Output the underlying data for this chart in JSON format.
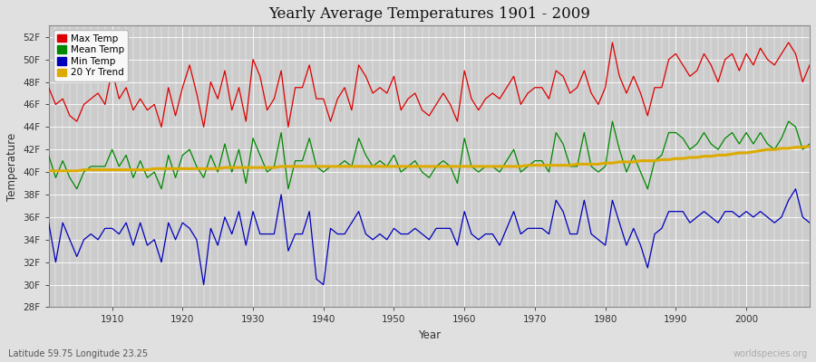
{
  "title": "Yearly Average Temperatures 1901 - 2009",
  "xlabel": "Year",
  "ylabel": "Temperature",
  "lat_lon_label": "Latitude 59.75 Longitude 23.25",
  "watermark": "worldspecies.org",
  "years": [
    1901,
    1902,
    1903,
    1904,
    1905,
    1906,
    1907,
    1908,
    1909,
    1910,
    1911,
    1912,
    1913,
    1914,
    1915,
    1916,
    1917,
    1918,
    1919,
    1920,
    1921,
    1922,
    1923,
    1924,
    1925,
    1926,
    1927,
    1928,
    1929,
    1930,
    1931,
    1932,
    1933,
    1934,
    1935,
    1936,
    1937,
    1938,
    1939,
    1940,
    1941,
    1942,
    1943,
    1944,
    1945,
    1946,
    1947,
    1948,
    1949,
    1950,
    1951,
    1952,
    1953,
    1954,
    1955,
    1956,
    1957,
    1958,
    1959,
    1960,
    1961,
    1962,
    1963,
    1964,
    1965,
    1966,
    1967,
    1968,
    1969,
    1970,
    1971,
    1972,
    1973,
    1974,
    1975,
    1976,
    1977,
    1978,
    1979,
    1980,
    1981,
    1982,
    1983,
    1984,
    1985,
    1986,
    1987,
    1988,
    1989,
    1990,
    1991,
    1992,
    1993,
    1994,
    1995,
    1996,
    1997,
    1998,
    1999,
    2000,
    2001,
    2002,
    2003,
    2004,
    2005,
    2006,
    2007,
    2008,
    2009
  ],
  "max_temp": [
    47.5,
    46.0,
    46.5,
    45.0,
    44.5,
    46.0,
    46.5,
    47.0,
    46.0,
    49.0,
    46.5,
    47.5,
    45.5,
    46.5,
    45.5,
    46.0,
    44.0,
    47.5,
    45.0,
    47.5,
    49.5,
    47.0,
    44.0,
    48.0,
    46.5,
    49.0,
    45.5,
    47.5,
    44.5,
    50.0,
    48.5,
    45.5,
    46.5,
    49.0,
    44.0,
    47.5,
    47.5,
    49.5,
    46.5,
    46.5,
    44.5,
    46.5,
    47.5,
    45.5,
    49.5,
    48.5,
    47.0,
    47.5,
    47.0,
    48.5,
    45.5,
    46.5,
    47.0,
    45.5,
    45.0,
    46.0,
    47.0,
    46.0,
    44.5,
    49.0,
    46.5,
    45.5,
    46.5,
    47.0,
    46.5,
    47.5,
    48.5,
    46.0,
    47.0,
    47.5,
    47.5,
    46.5,
    49.0,
    48.5,
    47.0,
    47.5,
    49.0,
    47.0,
    46.0,
    47.5,
    51.5,
    48.5,
    47.0,
    48.5,
    47.0,
    45.0,
    47.5,
    47.5,
    50.0,
    50.5,
    49.5,
    48.5,
    49.0,
    50.5,
    49.5,
    48.0,
    50.0,
    50.5,
    49.0,
    50.5,
    49.5,
    51.0,
    50.0,
    49.5,
    50.5,
    51.5,
    50.5,
    48.0,
    49.5
  ],
  "mean_temp": [
    41.5,
    39.5,
    41.0,
    39.5,
    38.5,
    40.0,
    40.5,
    40.5,
    40.5,
    42.0,
    40.5,
    41.5,
    39.5,
    41.0,
    39.5,
    40.0,
    38.5,
    41.5,
    39.5,
    41.5,
    42.0,
    40.5,
    39.5,
    41.5,
    40.0,
    42.5,
    40.0,
    42.0,
    39.0,
    43.0,
    41.5,
    40.0,
    40.5,
    43.5,
    38.5,
    41.0,
    41.0,
    43.0,
    40.5,
    40.0,
    40.5,
    40.5,
    41.0,
    40.5,
    43.0,
    41.5,
    40.5,
    41.0,
    40.5,
    41.5,
    40.0,
    40.5,
    41.0,
    40.0,
    39.5,
    40.5,
    41.0,
    40.5,
    39.0,
    43.0,
    40.5,
    40.0,
    40.5,
    40.5,
    40.0,
    41.0,
    42.0,
    40.0,
    40.5,
    41.0,
    41.0,
    40.0,
    43.5,
    42.5,
    40.5,
    40.5,
    43.5,
    40.5,
    40.0,
    40.5,
    44.5,
    42.0,
    40.0,
    41.5,
    40.0,
    38.5,
    41.0,
    41.5,
    43.5,
    43.5,
    43.0,
    42.0,
    42.5,
    43.5,
    42.5,
    42.0,
    43.0,
    43.5,
    42.5,
    43.5,
    42.5,
    43.5,
    42.5,
    42.0,
    43.0,
    44.5,
    44.0,
    42.0,
    42.5
  ],
  "min_temp": [
    35.5,
    32.0,
    35.5,
    34.0,
    32.5,
    34.0,
    34.5,
    34.0,
    35.0,
    35.0,
    34.5,
    35.5,
    33.5,
    35.5,
    33.5,
    34.0,
    32.0,
    35.5,
    34.0,
    35.5,
    35.0,
    34.0,
    30.0,
    35.0,
    33.5,
    36.0,
    34.5,
    36.5,
    33.5,
    36.5,
    34.5,
    34.5,
    34.5,
    38.0,
    33.0,
    34.5,
    34.5,
    36.5,
    30.5,
    30.0,
    35.0,
    34.5,
    34.5,
    35.5,
    36.5,
    34.5,
    34.0,
    34.5,
    34.0,
    35.0,
    34.5,
    34.5,
    35.0,
    34.5,
    34.0,
    35.0,
    35.0,
    35.0,
    33.5,
    36.5,
    34.5,
    34.0,
    34.5,
    34.5,
    33.5,
    35.0,
    36.5,
    34.5,
    35.0,
    35.0,
    35.0,
    34.5,
    37.5,
    36.5,
    34.5,
    34.5,
    37.5,
    34.5,
    34.0,
    33.5,
    37.5,
    35.5,
    33.5,
    35.0,
    33.5,
    31.5,
    34.5,
    35.0,
    36.5,
    36.5,
    36.5,
    35.5,
    36.0,
    36.5,
    36.0,
    35.5,
    36.5,
    36.5,
    36.0,
    36.5,
    36.0,
    36.5,
    36.0,
    35.5,
    36.0,
    37.5,
    38.5,
    36.0,
    35.5
  ],
  "trend": [
    40.1,
    40.1,
    40.1,
    40.1,
    40.1,
    40.2,
    40.2,
    40.2,
    40.2,
    40.2,
    40.2,
    40.2,
    40.2,
    40.2,
    40.2,
    40.3,
    40.3,
    40.3,
    40.3,
    40.3,
    40.3,
    40.3,
    40.3,
    40.3,
    40.3,
    40.4,
    40.4,
    40.4,
    40.4,
    40.4,
    40.4,
    40.4,
    40.4,
    40.5,
    40.5,
    40.5,
    40.5,
    40.5,
    40.5,
    40.5,
    40.5,
    40.5,
    40.5,
    40.5,
    40.5,
    40.5,
    40.5,
    40.5,
    40.5,
    40.5,
    40.5,
    40.5,
    40.5,
    40.5,
    40.5,
    40.5,
    40.5,
    40.5,
    40.5,
    40.5,
    40.5,
    40.5,
    40.5,
    40.5,
    40.5,
    40.5,
    40.5,
    40.5,
    40.6,
    40.6,
    40.6,
    40.6,
    40.6,
    40.6,
    40.6,
    40.7,
    40.7,
    40.7,
    40.7,
    40.8,
    40.8,
    40.9,
    40.9,
    40.9,
    41.0,
    41.0,
    41.0,
    41.1,
    41.1,
    41.2,
    41.2,
    41.3,
    41.3,
    41.4,
    41.4,
    41.5,
    41.5,
    41.6,
    41.7,
    41.7,
    41.8,
    41.9,
    42.0,
    42.0,
    42.1,
    42.1,
    42.2,
    42.2,
    42.3
  ],
  "max_color": "#dd0000",
  "mean_color": "#008800",
  "min_color": "#0000bb",
  "trend_color": "#ddaa00",
  "bg_color": "#e0e0e0",
  "plot_bg_color": "#cccccc",
  "grid_color": "#ffffff",
  "ylim": [
    28,
    53
  ],
  "yticks": [
    28,
    30,
    32,
    34,
    36,
    38,
    40,
    42,
    44,
    46,
    48,
    50,
    52
  ],
  "xlim": [
    1901,
    2009
  ],
  "xticks": [
    1910,
    1920,
    1930,
    1940,
    1950,
    1960,
    1970,
    1980,
    1990,
    2000
  ],
  "legend_labels": [
    "Max Temp",
    "Mean Temp",
    "Min Temp",
    "20 Yr Trend"
  ]
}
